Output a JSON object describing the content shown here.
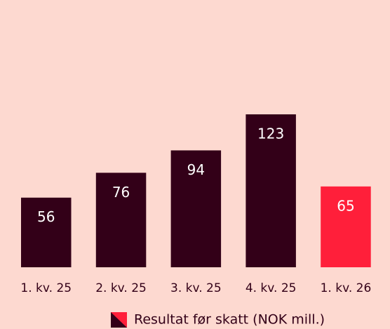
{
  "chart_data": {
    "type": "bar",
    "categories": [
      "1. kv. 25",
      "2. kv. 25",
      "3. kv. 25",
      "4. kv. 25",
      "1. kv. 26"
    ],
    "series": [
      {
        "name": "Resultat før skatt (NOK mill.)",
        "values": [
          56,
          76,
          94,
          123,
          65
        ],
        "colors": [
          "#330018",
          "#330018",
          "#330018",
          "#330018",
          "#ff1f3a"
        ]
      }
    ],
    "value_labels_color": "#ffffff"
  }
}
